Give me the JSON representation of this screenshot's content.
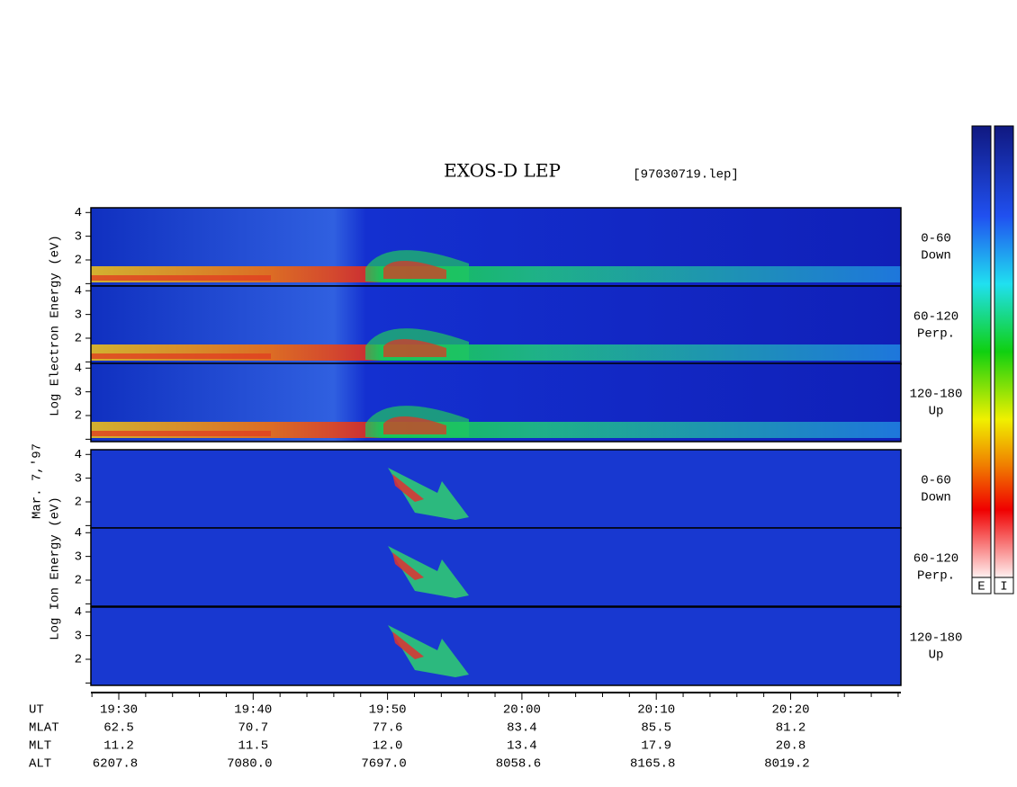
{
  "title": "EXOS-D LEP",
  "file": "[97030719.lep]",
  "date_label": "Mar. 7,'97",
  "electron_label": "Log Electron Energy (eV)",
  "ion_label": "Log Ion Energy (eV)",
  "ylim": [
    0.9,
    4.2
  ],
  "yticks": [
    2,
    3,
    4
  ],
  "panels": [
    {
      "species": "electron",
      "pitch": "0-60",
      "direction": "Down"
    },
    {
      "species": "electron",
      "pitch": "60-120",
      "direction": "Perp."
    },
    {
      "species": "electron",
      "pitch": "120-180",
      "direction": "Up"
    },
    {
      "species": "ion",
      "pitch": "0-60",
      "direction": "Down"
    },
    {
      "species": "ion",
      "pitch": "60-120",
      "direction": "Perp."
    },
    {
      "species": "ion",
      "pitch": "120-180",
      "direction": "Up"
    }
  ],
  "ephemeris": {
    "rows": [
      "UT",
      "MLAT",
      "MLT",
      "ALT"
    ],
    "columns": [
      [
        "19:30",
        "62.5",
        "11.2",
        "6207.8"
      ],
      [
        "19:40",
        "70.7",
        "11.5",
        "7080.0"
      ],
      [
        "19:50",
        "77.6",
        "12.0",
        "7697.0"
      ],
      [
        "20:00",
        "83.4",
        "13.4",
        "8058.6"
      ],
      [
        "20:10",
        "85.5",
        "17.9",
        "8165.8"
      ],
      [
        "20:20",
        "81.2",
        "20.8",
        "8019.2"
      ]
    ]
  },
  "colorbars": [
    "E",
    "I"
  ]
}
